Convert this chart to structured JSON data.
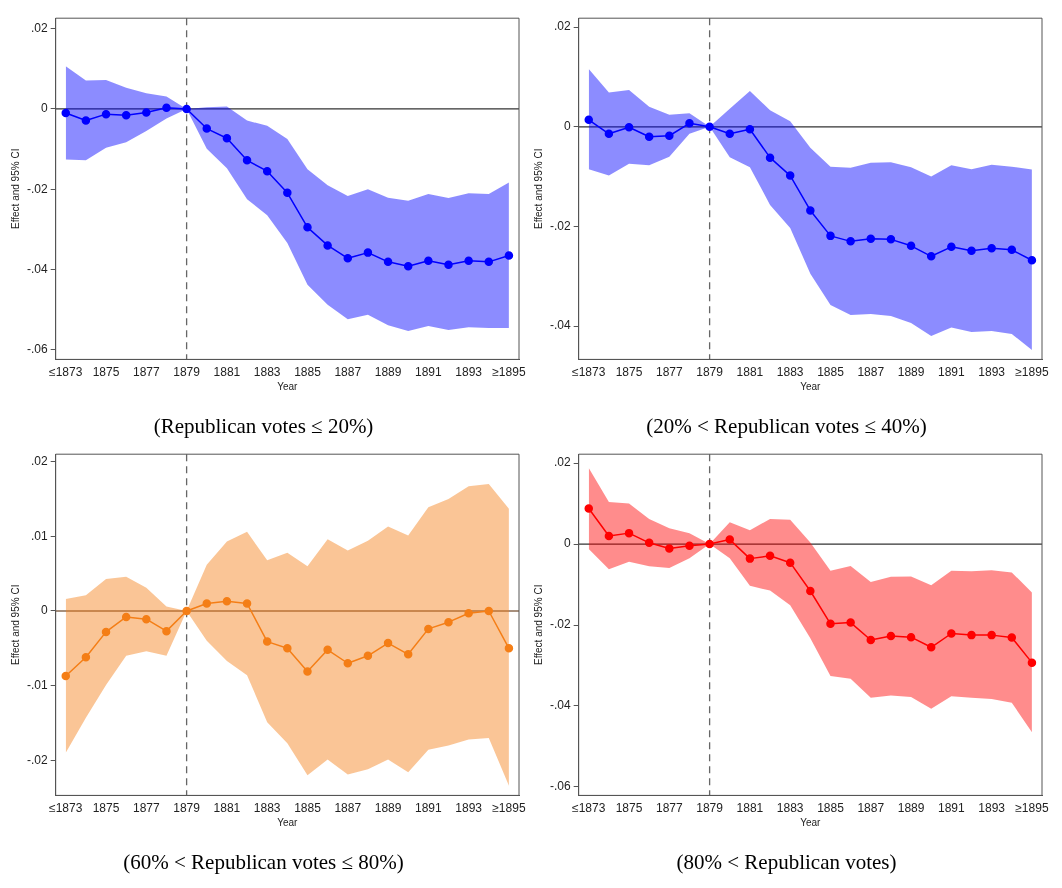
{
  "chart_data": [
    {
      "type": "line",
      "title": "(Republican votes ≤ 20%)",
      "xlabel": "Year",
      "ylabel": "Effect and 95% CI",
      "marker": "circle",
      "categories": [
        "≤1873",
        null,
        "1875",
        null,
        "1877",
        null,
        "1879",
        null,
        "1881",
        null,
        "1883",
        null,
        "1885",
        null,
        "1887",
        null,
        "1889",
        null,
        "1891",
        null,
        "1893",
        null,
        "≥1895"
      ],
      "series": [
        {
          "color": "#0000ff",
          "values": [
            -0.001,
            -0.0029,
            -0.0013,
            -0.0016,
            -0.0009,
            0.0003,
            0,
            -0.0049,
            -0.0073,
            -0.0128,
            -0.0155,
            -0.0209,
            -0.0295,
            -0.034,
            -0.0372,
            -0.0358,
            -0.0381,
            -0.0392,
            -0.0378,
            -0.0388,
            -0.0378,
            -0.0381,
            -0.0365
          ],
          "upper": [
            0.0106,
            0.0071,
            0.0072,
            0.0053,
            0.0039,
            0.0031,
            0,
            0.0004,
            0.0006,
            -0.0029,
            -0.0042,
            -0.0075,
            -0.015,
            -0.019,
            -0.0217,
            -0.02,
            -0.0221,
            -0.0229,
            -0.0212,
            -0.0222,
            -0.021,
            -0.0212,
            -0.0183
          ],
          "lower": [
            -0.0126,
            -0.0128,
            -0.0097,
            -0.0083,
            -0.0055,
            -0.0024,
            0,
            -0.0099,
            -0.0148,
            -0.0225,
            -0.0265,
            -0.0334,
            -0.0438,
            -0.0488,
            -0.0524,
            -0.0513,
            -0.0539,
            -0.0553,
            -0.0541,
            -0.0551,
            -0.0544,
            -0.0546,
            -0.0546
          ]
        }
      ],
      "ylim": [
        -0.0624,
        0.0226
      ],
      "yticks": [
        {
          "value": 0.02,
          "label": ".02"
        },
        {
          "value": 0,
          "label": "0"
        },
        {
          "value": -0.02,
          "label": "-.02"
        },
        {
          "value": -0.04,
          "label": "-.04"
        },
        {
          "value": -0.06,
          "label": "-.06"
        }
      ],
      "ref_lines": [
        {
          "axis": "y",
          "value": 0,
          "color": "#333333",
          "line_style": "solid"
        },
        {
          "axis": "x",
          "value": "1879",
          "color": "#666666",
          "line_style": "dashed"
        }
      ]
    },
    {
      "type": "line",
      "title": "(20% < Republican votes ≤ 40%)",
      "xlabel": "Year",
      "ylabel": "Effect and 95% CI",
      "marker": "circle",
      "categories": [
        "≤1873",
        null,
        "1875",
        null,
        "1877",
        null,
        "1879",
        null,
        "1881",
        null,
        "1883",
        null,
        "1885",
        null,
        "1887",
        null,
        "1889",
        null,
        "1891",
        null,
        "1893",
        null,
        "≥1895"
      ],
      "series": [
        {
          "color": "#0000ff",
          "values": [
            0.0014,
            -0.0014,
            -0.0001,
            -0.002,
            -0.0018,
            0.0007,
            0,
            -0.0014,
            -0.0005,
            -0.0062,
            -0.0098,
            -0.0168,
            -0.0219,
            -0.023,
            -0.0225,
            -0.0226,
            -0.0239,
            -0.026,
            -0.0241,
            -0.0249,
            -0.0244,
            -0.0247,
            -0.0268
          ],
          "upper": [
            0.0116,
            0.0069,
            0.0074,
            0.004,
            0.0024,
            0.0027,
            0,
            0.0036,
            0.0072,
            0.0033,
            0.0011,
            -0.0042,
            -0.008,
            -0.0082,
            -0.0072,
            -0.0071,
            -0.0081,
            -0.01,
            -0.0077,
            -0.0085,
            -0.0076,
            -0.008,
            -0.0086
          ],
          "lower": [
            -0.0085,
            -0.0098,
            -0.0074,
            -0.0077,
            -0.006,
            -0.0014,
            0,
            -0.0061,
            -0.0081,
            -0.0157,
            -0.0203,
            -0.0295,
            -0.0358,
            -0.0378,
            -0.0376,
            -0.038,
            -0.0394,
            -0.042,
            -0.0403,
            -0.0412,
            -0.041,
            -0.0416,
            -0.0448
          ]
        }
      ],
      "ylim": [
        -0.0467,
        0.0218
      ],
      "yticks": [
        {
          "value": 0.02,
          "label": ".02"
        },
        {
          "value": 0,
          "label": "0"
        },
        {
          "value": -0.02,
          "label": "-.02"
        },
        {
          "value": -0.04,
          "label": "-.04"
        }
      ],
      "ref_lines": [
        {
          "axis": "y",
          "value": 0,
          "color": "#333333",
          "line_style": "solid"
        },
        {
          "axis": "x",
          "value": "1879",
          "color": "#666666",
          "line_style": "dashed"
        }
      ]
    },
    {
      "type": "line",
      "title": "(60% < Republican votes ≤ 80%)",
      "xlabel": "Year",
      "ylabel": "Effect and 95% CI",
      "marker": "circle",
      "categories": [
        "≤1873",
        null,
        "1875",
        null,
        "1877",
        null,
        "1879",
        null,
        "1881",
        null,
        "1883",
        null,
        "1885",
        null,
        "1887",
        null,
        "1889",
        null,
        "1891",
        null,
        "1893",
        null,
        "≥1895"
      ],
      "series": [
        {
          "color": "#f57f17",
          "values": [
            -0.0087,
            -0.0062,
            -0.0028,
            -0.0008,
            -0.0011,
            -0.0027,
            0,
            0.001,
            0.0013,
            0.001,
            -0.0041,
            -0.005,
            -0.0081,
            -0.0052,
            -0.007,
            -0.006,
            -0.0043,
            -0.0058,
            -0.0024,
            -0.0015,
            -0.0003,
            0,
            -0.005
          ],
          "upper": [
            0.0016,
            0.0021,
            0.0043,
            0.0046,
            0.0031,
            0.0006,
            0,
            0.0062,
            0.0093,
            0.0106,
            0.0068,
            0.0078,
            0.006,
            0.0096,
            0.0081,
            0.0094,
            0.0113,
            0.0101,
            0.0139,
            0.015,
            0.0167,
            0.017,
            0.0137
          ],
          "lower": [
            -0.019,
            -0.0143,
            -0.0099,
            -0.006,
            -0.0054,
            -0.006,
            0,
            -0.004,
            -0.0067,
            -0.0086,
            -0.0149,
            -0.0177,
            -0.022,
            -0.0199,
            -0.0219,
            -0.0212,
            -0.0199,
            -0.0216,
            -0.0186,
            -0.018,
            -0.0172,
            -0.017,
            -0.0234
          ]
        }
      ],
      "ylim": [
        -0.0247,
        0.021
      ],
      "yticks": [
        {
          "value": 0.02,
          "label": ".02"
        },
        {
          "value": 0.01,
          "label": ".01"
        },
        {
          "value": 0,
          "label": "0"
        },
        {
          "value": -0.01,
          "label": "-.01"
        },
        {
          "value": -0.02,
          "label": "-.02"
        }
      ],
      "ref_lines": [
        {
          "axis": "y",
          "value": 0,
          "color": "#8a6a50",
          "line_style": "solid"
        },
        {
          "axis": "x",
          "value": "1879",
          "color": "#666666",
          "line_style": "dashed"
        }
      ]
    },
    {
      "type": "line",
      "title": "(80% < Republican votes)",
      "xlabel": "Year",
      "ylabel": "Effect and 95% CI",
      "marker": "circle",
      "categories": [
        "≤1873",
        null,
        "1875",
        null,
        "1877",
        null,
        "1879",
        null,
        "1881",
        null,
        "1883",
        null,
        "1885",
        null,
        "1887",
        null,
        "1889",
        null,
        "1891",
        null,
        "1893",
        null,
        "≥1895"
      ],
      "series": [
        {
          "color": "#ff0000",
          "values": [
            0.0088,
            0.002,
            0.0027,
            0.0003,
            -0.0011,
            -0.0004,
            0,
            0.0011,
            -0.0036,
            -0.0029,
            -0.0046,
            -0.0116,
            -0.0197,
            -0.0194,
            -0.0237,
            -0.0227,
            -0.023,
            -0.0255,
            -0.0221,
            -0.0225,
            -0.0225,
            -0.0231,
            -0.0293
          ],
          "upper": [
            0.0188,
            0.0104,
            0.01,
            0.0062,
            0.0039,
            0.0027,
            0,
            0.0054,
            0.0034,
            0.0062,
            0.006,
            0.0004,
            -0.0066,
            -0.0054,
            -0.0094,
            -0.0081,
            -0.008,
            -0.0102,
            -0.0066,
            -0.0067,
            -0.0065,
            -0.007,
            -0.012
          ],
          "lower": [
            -0.0012,
            -0.0062,
            -0.0044,
            -0.0055,
            -0.0059,
            -0.0035,
            0,
            -0.0035,
            -0.0103,
            -0.0115,
            -0.0151,
            -0.0233,
            -0.0326,
            -0.0333,
            -0.038,
            -0.0374,
            -0.0378,
            -0.0407,
            -0.0376,
            -0.038,
            -0.0383,
            -0.0392,
            -0.0465
          ]
        }
      ],
      "ylim": [
        -0.0621,
        0.0222
      ],
      "yticks": [
        {
          "value": 0.02,
          "label": ".02"
        },
        {
          "value": 0,
          "label": "0"
        },
        {
          "value": -0.02,
          "label": "-.02"
        },
        {
          "value": -0.04,
          "label": "-.04"
        },
        {
          "value": -0.06,
          "label": "-.06"
        }
      ],
      "ref_lines": [
        {
          "axis": "y",
          "value": 0,
          "color": "#333333",
          "line_style": "solid"
        },
        {
          "axis": "x",
          "value": "1879",
          "color": "#666666",
          "line_style": "dashed"
        }
      ]
    }
  ]
}
